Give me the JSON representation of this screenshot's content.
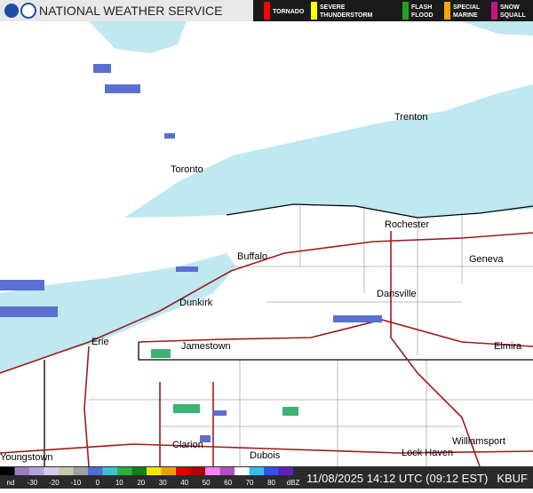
{
  "header": {
    "title": "NATIONAL WEATHER SERVICE"
  },
  "warnings": [
    {
      "label": "TORNADO",
      "color": "#ff0000"
    },
    {
      "label": "SEVERE THUNDERSTORM",
      "color": "#ffff00"
    },
    {
      "label": "FLASH FLOOD",
      "color": "#22a022"
    },
    {
      "label": "SPECIAL MARINE",
      "color": "#ffa500"
    },
    {
      "label": "SNOW SQUALL",
      "color": "#c71585"
    }
  ],
  "cities": [
    "Trenton",
    "Toronto",
    "Rochester",
    "Buffalo",
    "Geneva",
    "Dunkirk",
    "Dansville",
    "Erie",
    "Jamestown",
    "Elmira",
    "Williamsport",
    "Clarion",
    "Dubois",
    "Lock Haven",
    "Youngstown"
  ],
  "scale": {
    "labels": [
      "nd",
      -30,
      -20,
      -10,
      0,
      10,
      20,
      30,
      40,
      50,
      60,
      70,
      80,
      "dBZ"
    ]
  },
  "footer": {
    "timestamp": "11/08/2025 14:12 UTC (09:12 EST)",
    "station": "KBUF"
  }
}
